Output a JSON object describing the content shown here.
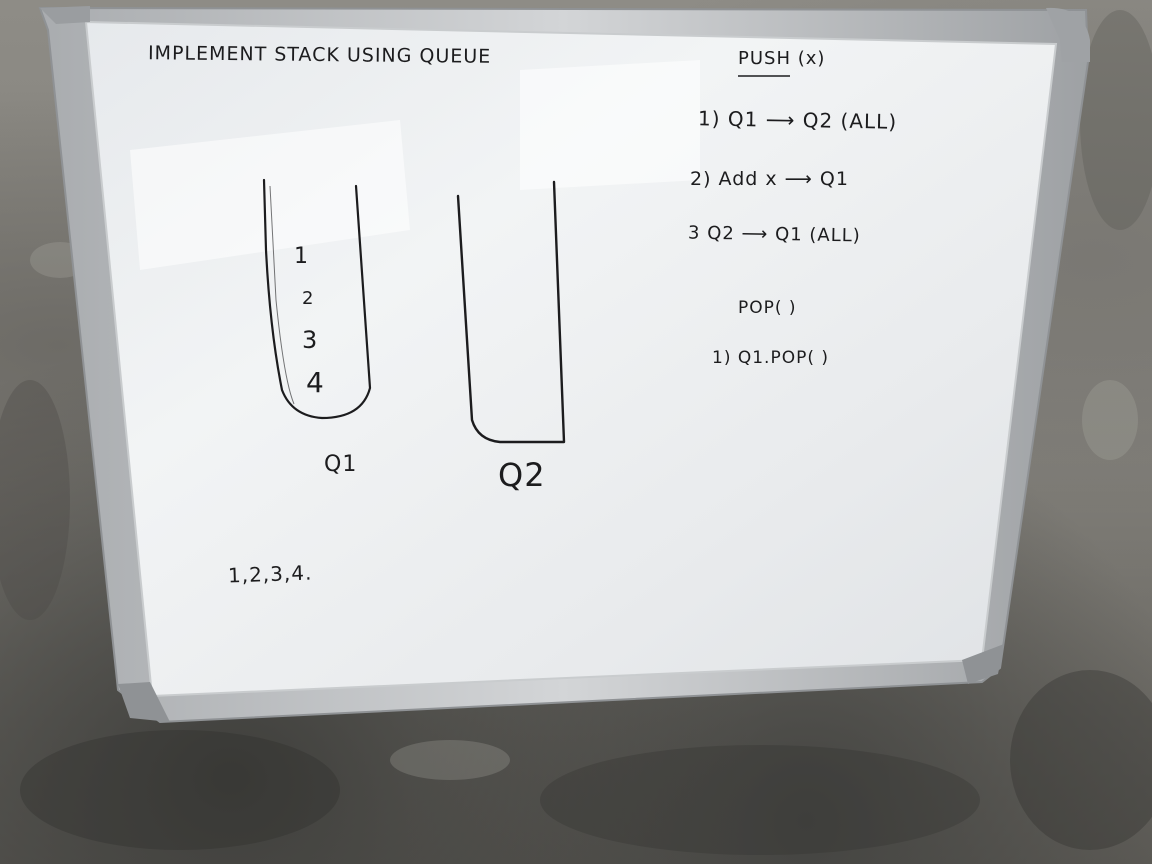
{
  "whiteboard": {
    "title": "IMPLEMENT STACK USING QUEUE",
    "push": {
      "heading": "PUSH (x)",
      "steps": [
        "1) Q1 ⟶ Q2 (ALL)",
        "2) Add x ⟶ Q1",
        "3 Q2 ⟶ Q1 (ALL)"
      ]
    },
    "pop": {
      "heading": "POP( )",
      "steps": [
        "1) Q1.POP( )"
      ]
    },
    "queue1": {
      "label": "Q1",
      "items": [
        "1",
        "2",
        "3",
        "4"
      ]
    },
    "queue2": {
      "label": "Q2"
    },
    "sequence": "1,2,3,4."
  },
  "colors": {
    "ink": "#1c1c1e",
    "board": "#eceef0",
    "frame": "#b8bbbe",
    "wall": "#8a8882"
  }
}
